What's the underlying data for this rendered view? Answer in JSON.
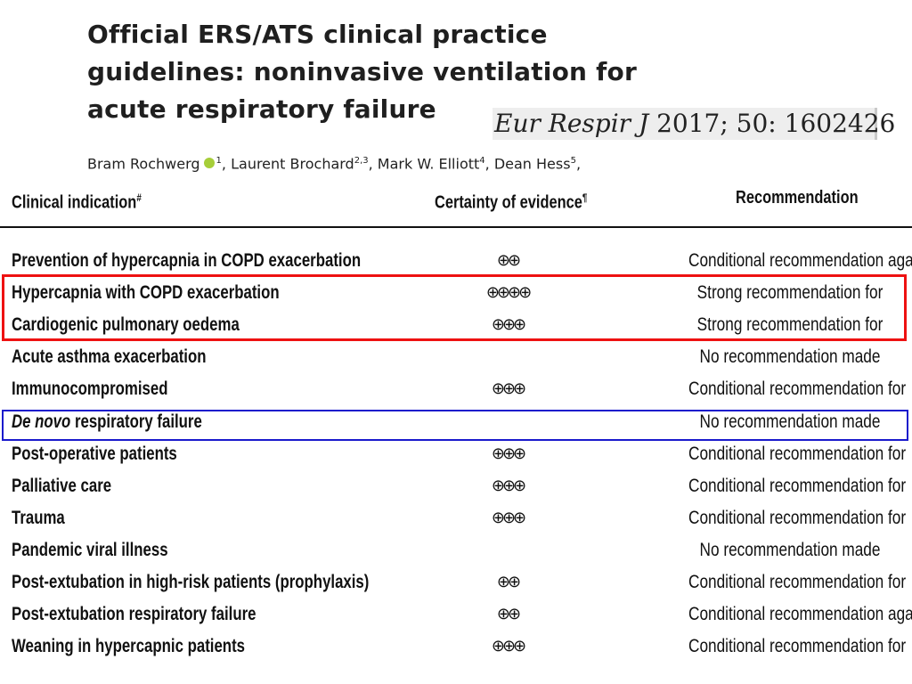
{
  "paper": {
    "title": "Official ERS/ATS clinical practice guidelines: noninvasive ventilation for acute respiratory failure",
    "citation": {
      "journal": "Eur Respir J",
      "details": "2017; 50: 1602426"
    },
    "authors": [
      {
        "name": "Bram Rochwerg",
        "sup": "1",
        "orcid": true
      },
      {
        "name": "Laurent Brochard",
        "sup": "2,3"
      },
      {
        "name": "Mark W. Elliott",
        "sup": "4"
      },
      {
        "name": "Dean Hess",
        "sup": "5"
      }
    ],
    "orcid_icon": "orcid-icon",
    "orcid_color": "#a6ce39"
  },
  "table": {
    "headers": {
      "indication": "Clinical indication",
      "indication_mark": "#",
      "evidence": "Certainty of evidence",
      "evidence_mark": "¶",
      "recommendation": "Recommendation"
    },
    "rows": [
      {
        "indication": "Prevention of hypercapnia in COPD exacerbation",
        "evidence": "⊕⊕",
        "recommendation": "Conditional recommendation against"
      },
      {
        "indication": "Hypercapnia with COPD exacerbation",
        "evidence": "⊕⊕⊕⊕",
        "recommendation": "Strong recommendation for"
      },
      {
        "indication": "Cardiogenic pulmonary oedema",
        "evidence": "⊕⊕⊕",
        "recommendation": "Strong recommendation for"
      },
      {
        "indication": "Acute asthma exacerbation",
        "evidence": "",
        "recommendation": "No recommendation made"
      },
      {
        "indication": "Immunocompromised",
        "evidence": "⊕⊕⊕",
        "recommendation": "Conditional recommendation for"
      },
      {
        "indication_italic": "De novo",
        "indication": " respiratory failure",
        "evidence": "",
        "recommendation": "No recommendation made"
      },
      {
        "indication": "Post-operative patients",
        "evidence": "⊕⊕⊕",
        "recommendation": "Conditional recommendation for"
      },
      {
        "indication": "Palliative care",
        "evidence": "⊕⊕⊕",
        "recommendation": "Conditional recommendation for"
      },
      {
        "indication": "Trauma",
        "evidence": "⊕⊕⊕",
        "recommendation": "Conditional recommendation for"
      },
      {
        "indication": "Pandemic viral illness",
        "evidence": "",
        "recommendation": "No recommendation made"
      },
      {
        "indication": "Post-extubation in high-risk patients (prophylaxis)",
        "evidence": "⊕⊕",
        "recommendation": "Conditional recommendation for"
      },
      {
        "indication": "Post-extubation respiratory failure",
        "evidence": "⊕⊕",
        "recommendation": "Conditional recommendation against"
      },
      {
        "indication": "Weaning in hypercapnic patients",
        "evidence": "⊕⊕⊕",
        "recommendation": "Conditional recommendation for"
      }
    ]
  },
  "highlights": {
    "red_color": "#ee1111",
    "blue_color": "#1a1acc"
  }
}
